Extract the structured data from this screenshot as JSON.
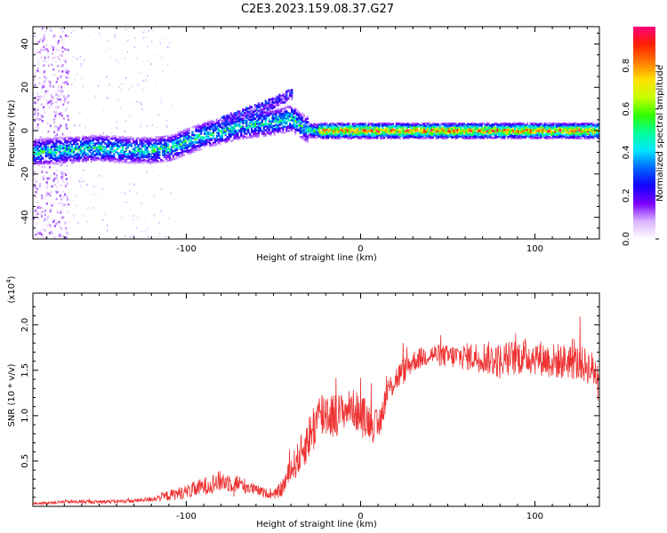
{
  "figure": {
    "title": "C2E3.2023.159.08.37.G27"
  },
  "chart_data": [
    {
      "type": "heatmap",
      "xlabel": "Height of straight line (km)",
      "ylabel": "Frequency (Hz)",
      "xlim": [
        -188,
        137
      ],
      "ylim": [
        -50,
        48
      ],
      "x_ticks": [
        -100,
        0,
        100
      ],
      "y_ticks": [
        -40,
        -20,
        0,
        20,
        40
      ],
      "colorbar": {
        "label": "Normalized spectral amplitude",
        "range": [
          0,
          0.98
        ],
        "ticks": [
          0.0,
          0.2,
          0.4,
          0.6,
          0.8
        ],
        "tick_labels": [
          "0.0",
          "0.2",
          "0.4",
          "0.6",
          "0.8"
        ],
        "colormap": [
          "#ffffff",
          "#d9b3ff",
          "#7a00ff",
          "#1400ff",
          "#0064ff",
          "#00e6ff",
          "#00ff9a",
          "#33ff00",
          "#c8ff00",
          "#ffe000",
          "#ff7a00",
          "#ff2000",
          "#ff0080"
        ]
      },
      "ridge": {
        "x": [
          -188,
          -170,
          -150,
          -130,
          -120,
          -110,
          -100,
          -90,
          -80,
          -70,
          -60,
          -50,
          -44,
          -40,
          -36,
          -32,
          -28,
          -24,
          -20,
          -10,
          0,
          20,
          40,
          60,
          80,
          100,
          120,
          137
        ],
        "y": [
          -10,
          -9,
          -8,
          -9,
          -9,
          -8,
          -5,
          -2,
          0,
          2,
          3,
          4,
          5,
          6,
          3,
          1,
          0,
          0,
          0,
          0,
          0,
          0,
          0,
          0,
          0,
          0,
          0,
          0
        ],
        "upper_branch": {
          "x": [
            -80,
            -70,
            -60,
            -50,
            -45,
            -40
          ],
          "y": [
            4,
            7,
            10,
            13,
            15,
            17
          ]
        }
      }
    },
    {
      "type": "line",
      "xlabel": "Height of straight line (km)",
      "ylabel": "SNR (10 * v/v)",
      "y_multiplier": "(x10",
      "y_multiplier_exp": "4",
      "y_multiplier_close": ")",
      "xlim": [
        -188,
        137
      ],
      "ylim": [
        0,
        2.35
      ],
      "x_ticks": [
        -100,
        0,
        100
      ],
      "y_ticks": [
        0.5,
        1.0,
        1.5,
        2.0
      ],
      "y_tick_labels": [
        "0.5",
        "1.0",
        "1.5",
        "2.0"
      ],
      "color": "#ee3333",
      "series": [
        {
          "x": [
            -188,
            -170,
            -150,
            -130,
            -120,
            -110,
            -100,
            -90,
            -80,
            -70,
            -60,
            -50,
            -45,
            -40,
            -35,
            -30,
            -25,
            -20,
            -15,
            -10,
            -5,
            0,
            5,
            10,
            15,
            20,
            25,
            30,
            40,
            50,
            60,
            70,
            80,
            90,
            100,
            110,
            120,
            130,
            137
          ],
          "y": [
            0.03,
            0.05,
            0.05,
            0.06,
            0.08,
            0.12,
            0.16,
            0.22,
            0.28,
            0.25,
            0.18,
            0.12,
            0.2,
            0.4,
            0.55,
            0.75,
            0.95,
            1.05,
            1.0,
            1.05,
            1.1,
            1.0,
            0.95,
            0.85,
            1.25,
            1.4,
            1.5,
            1.6,
            1.68,
            1.65,
            1.65,
            1.65,
            1.6,
            1.65,
            1.65,
            1.6,
            1.6,
            1.55,
            1.45
          ],
          "noise": [
            0.01,
            0.02,
            0.02,
            0.02,
            0.03,
            0.06,
            0.08,
            0.1,
            0.12,
            0.1,
            0.06,
            0.04,
            0.1,
            0.15,
            0.2,
            0.25,
            0.3,
            0.3,
            0.25,
            0.2,
            0.2,
            0.25,
            0.2,
            0.2,
            0.15,
            0.15,
            0.15,
            0.12,
            0.12,
            0.13,
            0.15,
            0.18,
            0.2,
            0.2,
            0.2,
            0.2,
            0.2,
            0.2,
            0.2
          ]
        }
      ]
    }
  ]
}
